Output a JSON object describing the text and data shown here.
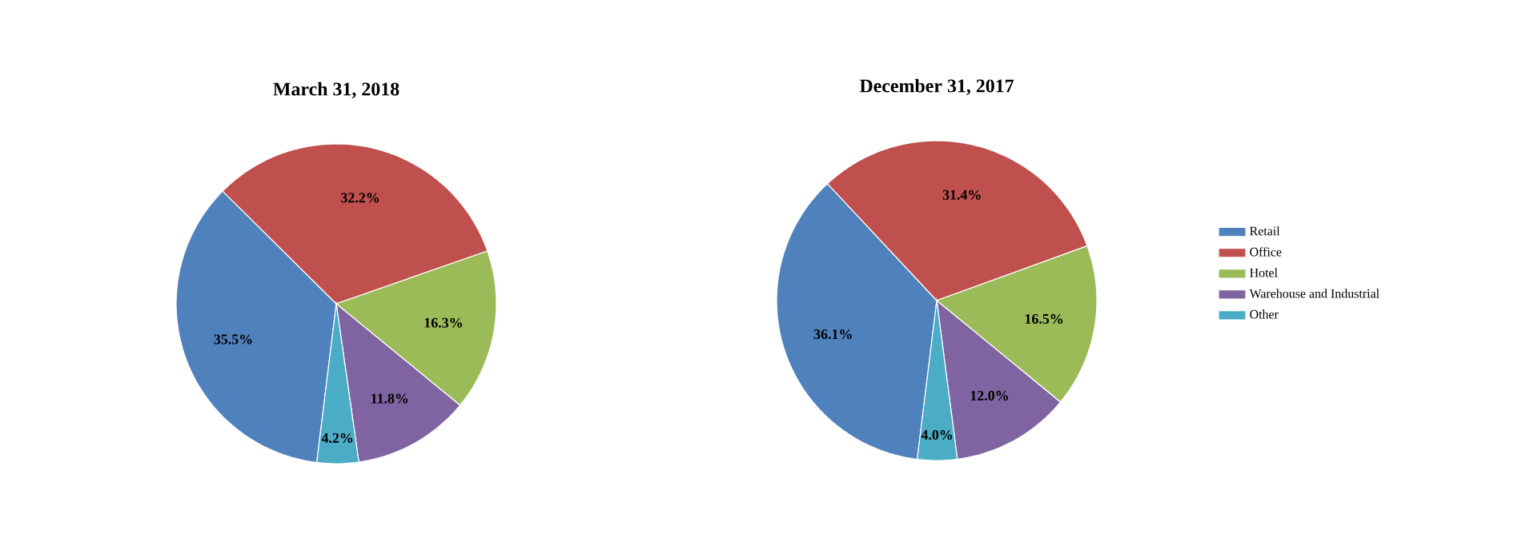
{
  "chart_data": [
    {
      "type": "pie",
      "title": "March 31, 2018",
      "categories": [
        null,
        null,
        null,
        null,
        null
      ],
      "values": [
        35.5,
        32.2,
        16.3,
        11.8,
        4.2
      ],
      "value_labels": [
        "35.5%",
        "32.2%",
        "16.3%",
        "11.8%",
        "4.2%"
      ],
      "colors": [
        "#4f81bd",
        "#c0504d",
        "#9bbb59",
        "#8064a2",
        "#4bacc6"
      ]
    },
    {
      "type": "pie",
      "title": "December 31, 2017",
      "categories": [
        "Retail",
        "Office",
        "Hotel",
        "Warehouse and Industrial",
        "Other"
      ],
      "values": [
        36.1,
        31.4,
        16.5,
        12.0,
        4.0
      ],
      "value_labels": [
        "36.1%",
        "31.4%",
        "16.5%",
        "12.0%",
        "4.0%"
      ],
      "colors": [
        "#4f81bd",
        "#c0504d",
        "#9bbb59",
        "#8064a2",
        "#4bacc6"
      ],
      "legend": "right"
    }
  ]
}
